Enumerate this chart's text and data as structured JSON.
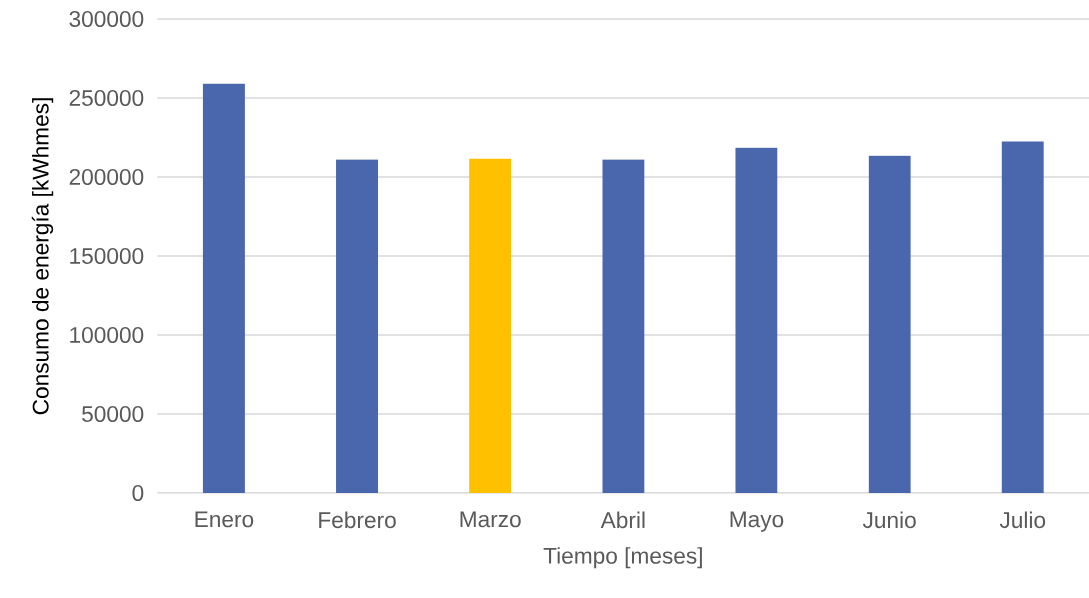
{
  "chart_data": {
    "type": "bar",
    "xlabel": "Tiempo [meses]",
    "ylabel": "Consumo de energía [kWhmes]",
    "categories": [
      "Enero",
      "Febrero",
      "Marzo",
      "Abril",
      "Mayo",
      "Junio",
      "Julio"
    ],
    "values": [
      259000,
      211000,
      211500,
      211000,
      218500,
      213500,
      222500
    ],
    "colors": [
      "#4a67ae",
      "#4a67ae",
      "#ffc000",
      "#4a67ae",
      "#4a67ae",
      "#4a67ae",
      "#4a67ae"
    ],
    "ylim": [
      0,
      300000
    ],
    "yticks": [
      0,
      50000,
      100000,
      150000,
      200000,
      250000,
      300000
    ],
    "grid": "y"
  }
}
